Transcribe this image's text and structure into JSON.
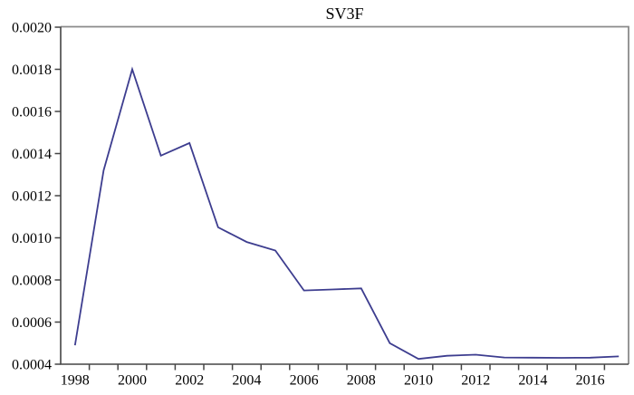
{
  "window": {
    "background": "#ffffff"
  },
  "colors": {
    "line": "#3d3d8f",
    "frame_gray": "#8a8a8a",
    "axis_dark": "#454545",
    "tick": "#454545",
    "text": "#000000",
    "plot_background": "#ffffff"
  },
  "chart_data": {
    "type": "line",
    "title": "SV3F",
    "xlabel": "",
    "ylabel": "",
    "legend": "none",
    "grid": "off",
    "x": [
      1998,
      1999,
      2000,
      2001,
      2002,
      2003,
      2004,
      2005,
      2006,
      2007,
      2008,
      2009,
      2010,
      2011,
      2012,
      2013,
      2014,
      2015,
      2016,
      2017
    ],
    "values": [
      0.00049,
      0.00132,
      0.0018,
      0.00139,
      0.00145,
      0.00105,
      0.00098,
      0.00094,
      0.00075,
      0.000755,
      0.00076,
      0.0005,
      0.000425,
      0.00044,
      0.000445,
      0.000432,
      0.000431,
      0.00043,
      0.000431,
      0.000437
    ],
    "ylim": [
      0.0004,
      0.002
    ],
    "ytick_step": 0.0002,
    "ytick_labels": [
      "0.0020",
      "0.0018",
      "0.0016",
      "0.0014",
      "0.0012",
      "0.0010",
      "0.0008",
      "0.0006",
      "0.0004"
    ],
    "xtick_labels": [
      "1998",
      "2000",
      "2002",
      "2004",
      "2006",
      "2008",
      "2010",
      "2012",
      "2014",
      "2016"
    ],
    "x_minor_tick_boundaries": [
      1998.5,
      1999.5,
      2000.5,
      2001.5,
      2002.5,
      2003.5,
      2004.5,
      2005.5,
      2006.5,
      2007.5,
      2008.5,
      2009.5,
      2010.5,
      2011.5,
      2012.5,
      2013.5,
      2014.5,
      2015.5,
      2016.5
    ]
  }
}
